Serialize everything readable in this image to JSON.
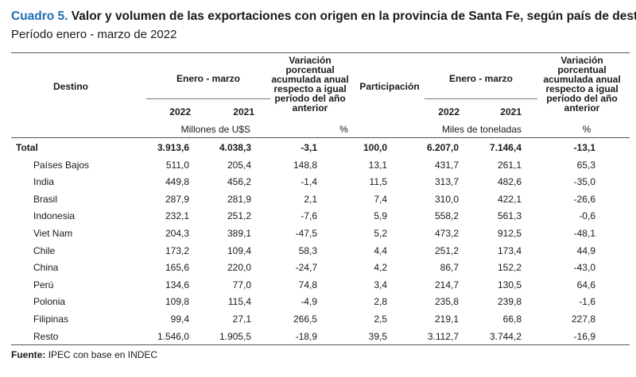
{
  "title": {
    "label": "Cuadro 5.",
    "text": "Valor y volumen de las exportaciones con origen en la provincia de Santa Fe, según país de destino",
    "subtitle": "Período enero - marzo de 2022"
  },
  "colors": {
    "accent": "#1f6db5",
    "rules": "#555555"
  },
  "header": {
    "destino": "Destino",
    "enero_marzo_value": "Enero - marzo",
    "variacion_value": [
      "Variación",
      "porcentual",
      "acumulada anual",
      "respecto a igual",
      "período del año",
      "anterior"
    ],
    "participacion": "Participación",
    "enero_marzo_volume": "Enero - marzo",
    "variacion_volume": [
      "Variación",
      "porcentual",
      "acumulada anual",
      "respecto a igual",
      "período del año",
      "anterior"
    ],
    "y2022_a": "2022",
    "y2021_a": "2021",
    "y2022_b": "2022",
    "y2021_b": "2021",
    "unit_value": "Millones de U$S",
    "unit_pct_a": "%",
    "unit_volume": "Miles de toneladas",
    "unit_pct_b": "%"
  },
  "rows": [
    {
      "destino": "Total",
      "v2022": "3.913,6",
      "v2021": "4.038,3",
      "var_v": "-3,1",
      "part": "100,0",
      "t2022": "6.207,0",
      "t2021": "7.146,4",
      "var_t": "-13,1"
    },
    {
      "destino": "Países Bajos",
      "v2022": "511,0",
      "v2021": "205,4",
      "var_v": "148,8",
      "part": "13,1",
      "t2022": "431,7",
      "t2021": "261,1",
      "var_t": "65,3"
    },
    {
      "destino": "India",
      "v2022": "449,8",
      "v2021": "456,2",
      "var_v": "-1,4",
      "part": "11,5",
      "t2022": "313,7",
      "t2021": "482,6",
      "var_t": "-35,0"
    },
    {
      "destino": "Brasil",
      "v2022": "287,9",
      "v2021": "281,9",
      "var_v": "2,1",
      "part": "7,4",
      "t2022": "310,0",
      "t2021": "422,1",
      "var_t": "-26,6"
    },
    {
      "destino": "Indonesia",
      "v2022": "232,1",
      "v2021": "251,2",
      "var_v": "-7,6",
      "part": "5,9",
      "t2022": "558,2",
      "t2021": "561,3",
      "var_t": "-0,6"
    },
    {
      "destino": "Viet Nam",
      "v2022": "204,3",
      "v2021": "389,1",
      "var_v": "-47,5",
      "part": "5,2",
      "t2022": "473,2",
      "t2021": "912,5",
      "var_t": "-48,1"
    },
    {
      "destino": "Chile",
      "v2022": "173,2",
      "v2021": "109,4",
      "var_v": "58,3",
      "part": "4,4",
      "t2022": "251,2",
      "t2021": "173,4",
      "var_t": "44,9"
    },
    {
      "destino": "China",
      "v2022": "165,6",
      "v2021": "220,0",
      "var_v": "-24,7",
      "part": "4,2",
      "t2022": "86,7",
      "t2021": "152,2",
      "var_t": "-43,0"
    },
    {
      "destino": "Perú",
      "v2022": "134,6",
      "v2021": "77,0",
      "var_v": "74,8",
      "part": "3,4",
      "t2022": "214,7",
      "t2021": "130,5",
      "var_t": "64,6"
    },
    {
      "destino": "Polonia",
      "v2022": "109,8",
      "v2021": "115,4",
      "var_v": "-4,9",
      "part": "2,8",
      "t2022": "235,8",
      "t2021": "239,8",
      "var_t": "-1,6"
    },
    {
      "destino": "Filipinas",
      "v2022": "99,4",
      "v2021": "27,1",
      "var_v": "266,5",
      "part": "2,5",
      "t2022": "219,1",
      "t2021": "66,8",
      "var_t": "227,8"
    },
    {
      "destino": "Resto",
      "v2022": "1.546,0",
      "v2021": "1.905,5",
      "var_v": "-18,9",
      "part": "39,5",
      "t2022": "3.112,7",
      "t2021": "3.744,2",
      "var_t": "-16,9"
    }
  ],
  "source": {
    "label": "Fuente:",
    "text": "IPEC con base en INDEC"
  }
}
